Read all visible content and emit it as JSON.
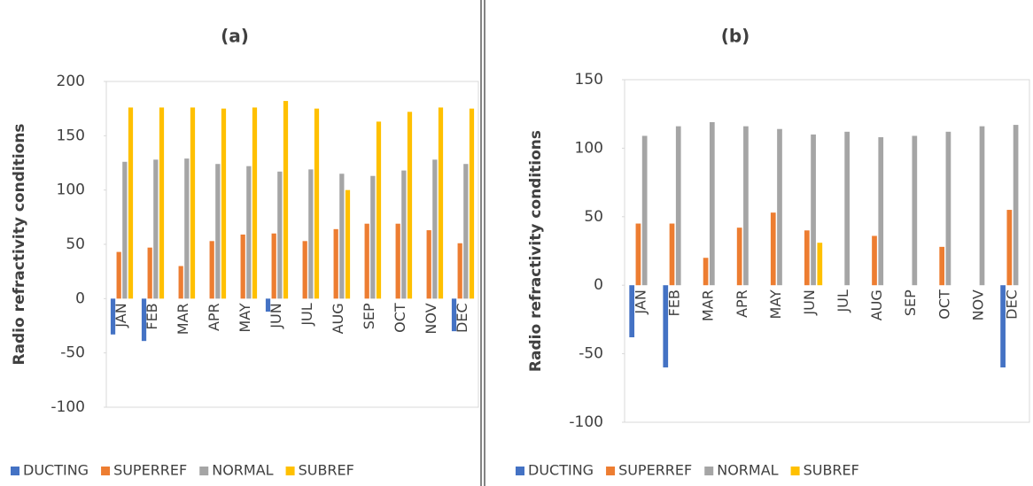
{
  "chart_data": [
    {
      "type": "bar",
      "title": "(a)",
      "y_label": "Radio refractivity conditions",
      "categories": [
        "JAN",
        "FEB",
        "MAR",
        "APR",
        "MAY",
        "JUN",
        "JUL",
        "AUG",
        "SEP",
        "OCT",
        "NOV",
        "DEC"
      ],
      "series": [
        {
          "name": "DUCTING",
          "color": "#4472c4",
          "values": [
            -33,
            -39,
            0,
            0,
            0,
            -12,
            0,
            0,
            0,
            0,
            0,
            -30
          ]
        },
        {
          "name": "SUPERREF",
          "color": "#ed7d31",
          "values": [
            43,
            47,
            30,
            53,
            59,
            60,
            53,
            64,
            69,
            69,
            63,
            51
          ]
        },
        {
          "name": "NORMAL",
          "color": "#a5a5a5",
          "values": [
            126,
            128,
            129,
            124,
            122,
            117,
            119,
            115,
            113,
            118,
            128,
            124
          ]
        },
        {
          "name": "SUBREF",
          "color": "#ffc000",
          "values": [
            176,
            176,
            176,
            175,
            176,
            182,
            175,
            100,
            163,
            172,
            176,
            175
          ]
        }
      ],
      "ylim": [
        -100,
        200
      ],
      "yticks": [
        -100,
        -50,
        0,
        50,
        100,
        150,
        200
      ],
      "legend": "bottom"
    },
    {
      "type": "bar",
      "title": "(b)",
      "y_label": "Radio refractivity conditions",
      "categories": [
        "JAN",
        "FEB",
        "MAR",
        "APR",
        "MAY",
        "JUN",
        "JUL",
        "AUG",
        "SEP",
        "OCT",
        "NOV",
        "DEC"
      ],
      "series": [
        {
          "name": "DUCTING",
          "color": "#4472c4",
          "values": [
            -38,
            -60,
            0,
            0,
            0,
            0,
            0,
            0,
            0,
            0,
            0,
            -60
          ]
        },
        {
          "name": "SUPERREF",
          "color": "#ed7d31",
          "values": [
            45,
            45,
            20,
            42,
            53,
            40,
            0,
            36,
            0,
            28,
            0,
            55
          ]
        },
        {
          "name": "NORMAL",
          "color": "#a5a5a5",
          "values": [
            109,
            116,
            119,
            116,
            114,
            110,
            112,
            108,
            109,
            112,
            116,
            117
          ]
        },
        {
          "name": "SUBREF",
          "color": "#ffc000",
          "values": [
            0,
            0,
            0,
            0,
            0,
            31,
            0,
            0,
            0,
            0,
            0,
            0
          ]
        }
      ],
      "ylim": [
        -100,
        150
      ],
      "yticks": [
        -100,
        -50,
        0,
        50,
        100,
        150
      ],
      "legend": "bottom"
    }
  ]
}
